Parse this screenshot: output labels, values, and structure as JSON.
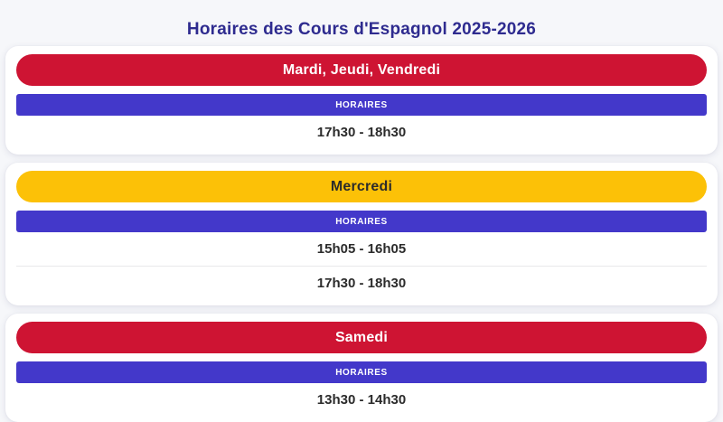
{
  "page": {
    "title": "Horaires des Cours d'Espagnol 2025-2026",
    "colors": {
      "accent_red": "#ce1433",
      "accent_yellow": "#fcc107",
      "accent_blue": "#4338ca",
      "title_color": "#2e2b8f",
      "time_text": "#2b2b2b",
      "page_bg": "#f6f7fa",
      "card_bg": "#ffffff",
      "divider": "#e8e8ea"
    }
  },
  "cards": [
    {
      "day": "Mardi, Jeudi, Vendredi",
      "theme": "red",
      "column_header": "HORAIRES",
      "times": [
        "17h30 - 18h30"
      ]
    },
    {
      "day": "Mercredi",
      "theme": "yellow",
      "column_header": "HORAIRES",
      "times": [
        "15h05 - 16h05",
        "17h30 - 18h30"
      ]
    },
    {
      "day": "Samedi",
      "theme": "red",
      "column_header": "HORAIRES",
      "times": [
        "13h30 - 14h30"
      ]
    }
  ]
}
